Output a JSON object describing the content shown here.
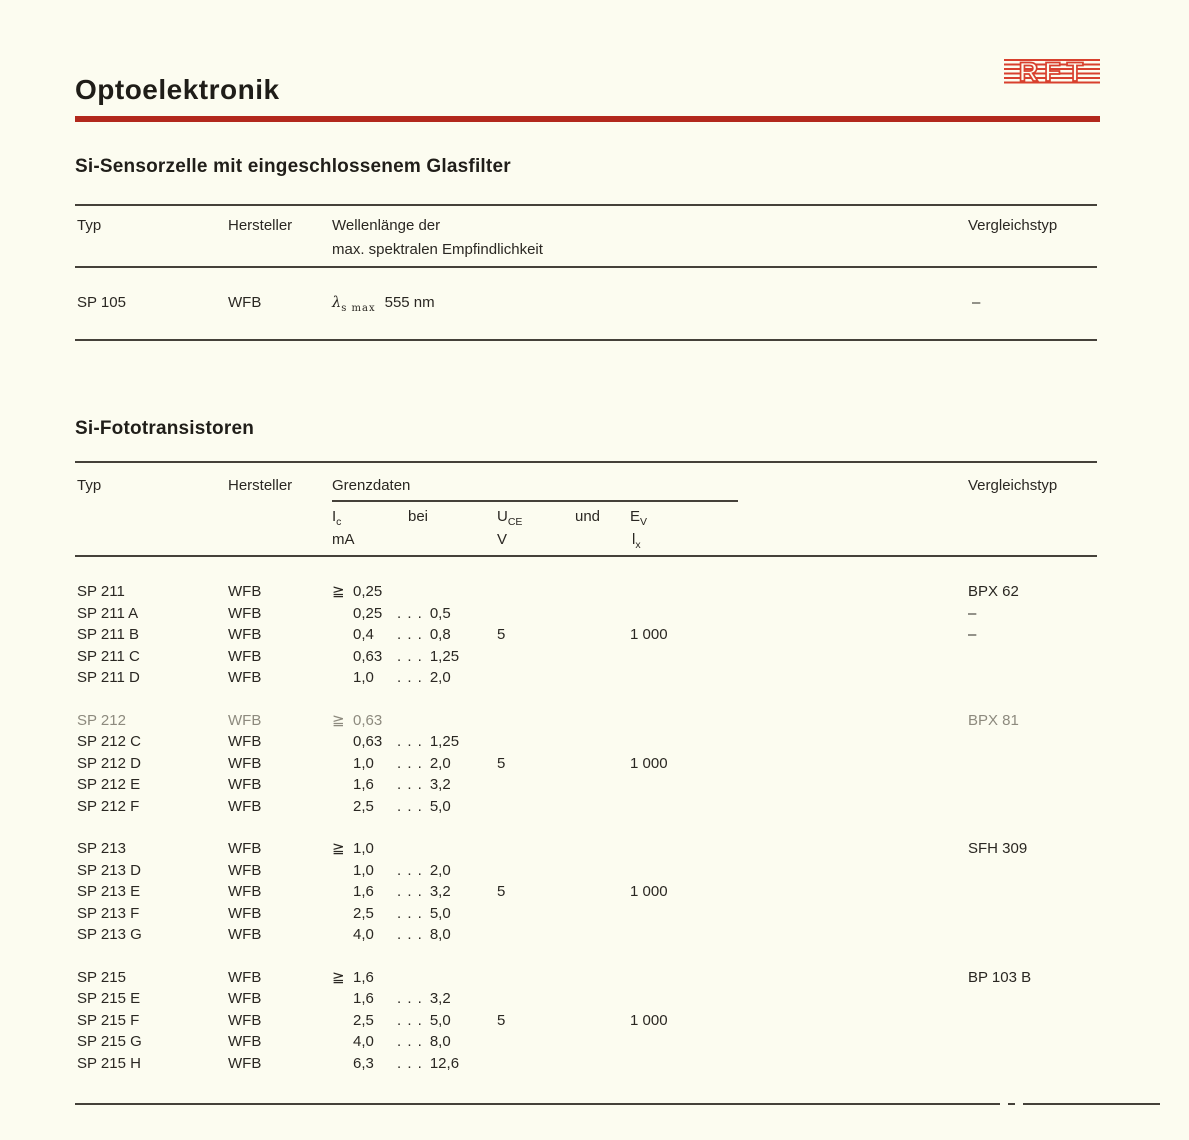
{
  "page": {
    "title": "Optoelektronik",
    "background": "#fcfcf0",
    "accent_red": "#b2281c",
    "text_color": "#2a2722"
  },
  "logo": {
    "text": "RFT",
    "color": "#d8402e"
  },
  "sensor_table": {
    "heading": "Si-Sensorzelle mit eingeschlossenem Glasfilter",
    "headers": {
      "typ": "Typ",
      "hersteller": "Hersteller",
      "wellenlaenge_line1": "Wellenlänge der",
      "wellenlaenge_line2": "max. spektralen Empfindlichkeit",
      "vergleichstyp": "Vergleichstyp"
    },
    "row": {
      "typ": "SP 105",
      "hersteller": "WFB",
      "lambda_base": "λ",
      "lambda_sub": "s max",
      "lambda_value": "555 nm",
      "vergleichstyp": "–"
    }
  },
  "transistor_table": {
    "heading": "Si-Fototransistoren",
    "headers": {
      "typ": "Typ",
      "hersteller": "Hersteller",
      "grenzdaten": "Grenzdaten",
      "vergleichstyp": "Vergleichstyp"
    },
    "subheaders": {
      "ic_base": "I",
      "ic_sub": "c",
      "ic_unit": "mA",
      "bei": "bei",
      "uce_base": "U",
      "uce_sub": "CE",
      "uce_unit": "V",
      "und": "und",
      "ev_base": "E",
      "ev_sub": "V",
      "ev_unit_base": "l",
      "ev_unit_sub": "x"
    },
    "geq_symbol": "≧",
    "range_dots": ". . .",
    "groups": [
      {
        "rows": [
          {
            "typ": "SP 211",
            "hersteller": "WFB",
            "ic_geq": "0,25",
            "vergleichstyp": "BPX 62"
          },
          {
            "typ": "SP 211 A",
            "hersteller": "WFB",
            "ic_min": "0,25",
            "ic_max": "0,5",
            "vergleichstyp": "–"
          },
          {
            "typ": "SP 211 B",
            "hersteller": "WFB",
            "ic_min": "0,4",
            "ic_max": "0,8",
            "uce_v": "5",
            "ev_lx": "1 000",
            "vergleichstyp": "–"
          },
          {
            "typ": "SP 211 C",
            "hersteller": "WFB",
            "ic_min": "0,63",
            "ic_max": "1,25"
          },
          {
            "typ": "SP 211 D",
            "hersteller": "WFB",
            "ic_min": "1,0",
            "ic_max": "2,0"
          }
        ]
      },
      {
        "rows": [
          {
            "typ": "SP 212",
            "hersteller": "WFB",
            "ic_geq": "0,63",
            "vergleichstyp": "BPX 81",
            "faded": true
          },
          {
            "typ": "SP 212 C",
            "hersteller": "WFB",
            "ic_min": "0,63",
            "ic_max": "1,25"
          },
          {
            "typ": "SP 212 D",
            "hersteller": "WFB",
            "ic_min": "1,0",
            "ic_max": "2,0",
            "uce_v": "5",
            "ev_lx": "1 000"
          },
          {
            "typ": "SP 212 E",
            "hersteller": "WFB",
            "ic_min": "1,6",
            "ic_max": "3,2"
          },
          {
            "typ": "SP 212 F",
            "hersteller": "WFB",
            "ic_min": "2,5",
            "ic_max": "5,0"
          }
        ]
      },
      {
        "rows": [
          {
            "typ": "SP 213",
            "hersteller": "WFB",
            "ic_geq": "1,0",
            "vergleichstyp": "SFH 309"
          },
          {
            "typ": "SP 213 D",
            "hersteller": "WFB",
            "ic_min": "1,0",
            "ic_max": "2,0"
          },
          {
            "typ": "SP 213 E",
            "hersteller": "WFB",
            "ic_min": "1,6",
            "ic_max": "3,2",
            "uce_v": "5",
            "ev_lx": "1 000"
          },
          {
            "typ": "SP 213 F",
            "hersteller": "WFB",
            "ic_min": "2,5",
            "ic_max": "5,0"
          },
          {
            "typ": "SP 213 G",
            "hersteller": "WFB",
            "ic_min": "4,0",
            "ic_max": "8,0"
          }
        ]
      },
      {
        "rows": [
          {
            "typ": "SP 215",
            "hersteller": "WFB",
            "ic_geq": "1,6",
            "vergleichstyp": "BP 103 B"
          },
          {
            "typ": "SP 215 E",
            "hersteller": "WFB",
            "ic_min": "1,6",
            "ic_max": "3,2"
          },
          {
            "typ": "SP 215 F",
            "hersteller": "WFB",
            "ic_min": "2,5",
            "ic_max": "5,0",
            "uce_v": "5",
            "ev_lx": "1 000"
          },
          {
            "typ": "SP 215 G",
            "hersteller": "WFB",
            "ic_min": "4,0",
            "ic_max": "8,0"
          },
          {
            "typ": "SP 215 H",
            "hersteller": "WFB",
            "ic_min": "6,3",
            "ic_max": "12,6"
          }
        ]
      }
    ]
  }
}
